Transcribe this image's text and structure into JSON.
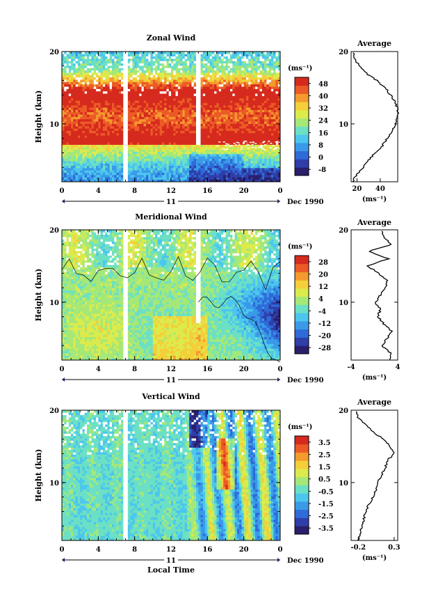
{
  "chart_data": [
    {
      "type": "heatmap",
      "title": "Zonal Wind",
      "xlabel": "",
      "ylabel": "Height (km)",
      "xlim": [
        0,
        24
      ],
      "ylim": [
        2,
        20
      ],
      "xticks": [
        "0",
        "4",
        "8",
        "12",
        "16",
        "20",
        "0"
      ],
      "yticks": [
        "20",
        "10"
      ],
      "date_bar": {
        "day": "11",
        "label": "Dec 1990"
      },
      "colorbar": {
        "unit": "(ms⁻¹)",
        "levels": [
          48,
          40,
          32,
          24,
          16,
          8,
          0,
          -8
        ],
        "range": [
          -8,
          52
        ]
      },
      "profile": {
        "title": "Average",
        "yticks": [
          "20",
          "10"
        ],
        "xticks": [
          "20",
          "40"
        ],
        "xlabel": "(ms⁻¹)",
        "xlim": [
          15,
          55
        ],
        "heights": [
          2,
          3,
          4,
          5,
          6,
          7,
          8,
          9,
          10,
          11,
          12,
          13,
          14,
          15,
          16,
          17,
          18,
          19,
          20
        ],
        "values": [
          16,
          20,
          25,
          30,
          36,
          42,
          46,
          50,
          53,
          55,
          55,
          53,
          49,
          44,
          37,
          28,
          22,
          18,
          17
        ]
      }
    },
    {
      "type": "heatmap",
      "title": "Meridional Wind",
      "xlabel": "",
      "ylabel": "Height (km)",
      "xlim": [
        0,
        24
      ],
      "ylim": [
        2,
        20
      ],
      "xticks": [
        "0",
        "4",
        "8",
        "12",
        "16",
        "20",
        "0"
      ],
      "yticks": [
        "20",
        "10"
      ],
      "date_bar": {
        "day": "11",
        "label": "Dec 1990"
      },
      "colorbar": {
        "unit": "(ms⁻¹)",
        "levels": [
          28,
          20,
          12,
          4,
          -4,
          -12,
          -20,
          -28
        ],
        "range": [
          -32,
          32
        ]
      },
      "profile": {
        "title": "Average",
        "yticks": [
          "20",
          "10"
        ],
        "xticks": [
          "-4",
          "4"
        ],
        "xlabel": "(ms⁻¹)",
        "xlim": [
          -4,
          4
        ],
        "heights": [
          2,
          3,
          4,
          5,
          6,
          7,
          8,
          9,
          10,
          11,
          12,
          13,
          14,
          15,
          16,
          17,
          18,
          19,
          20
        ],
        "values": [
          2.5,
          2.8,
          1.2,
          2.2,
          3.0,
          1.6,
          0.6,
          1.0,
          0.2,
          1.0,
          1.8,
          2.2,
          0.8,
          -1.2,
          2.4,
          -1.0,
          3.0,
          1.5,
          1.2
        ]
      }
    },
    {
      "type": "heatmap",
      "title": "Vertical Wind",
      "xlabel": "Local Time",
      "ylabel": "Height (km)",
      "xlim": [
        0,
        24
      ],
      "ylim": [
        2,
        20
      ],
      "xticks": [
        "0",
        "4",
        "8",
        "12",
        "16",
        "20",
        "0"
      ],
      "yticks": [
        "20",
        "10"
      ],
      "date_bar": {
        "day": "11",
        "label": "Dec 1990"
      },
      "colorbar": {
        "unit": "(ms⁻¹)",
        "levels": [
          3.5,
          2.5,
          1.5,
          0.5,
          -0.5,
          -1.5,
          -2.5,
          -3.5
        ],
        "range": [
          -4,
          4
        ]
      },
      "profile": {
        "title": "Average",
        "yticks": [
          "20",
          "10"
        ],
        "xticks": [
          "-0.2",
          "0.3"
        ],
        "xlabel": "(ms⁻¹)",
        "xlim": [
          -0.3,
          0.35
        ],
        "heights": [
          2,
          3,
          4,
          5,
          6,
          7,
          8,
          9,
          10,
          11,
          12,
          13,
          14,
          15,
          16,
          17,
          18,
          19,
          20
        ],
        "values": [
          -0.2,
          -0.18,
          -0.15,
          -0.12,
          -0.1,
          -0.05,
          0.0,
          0.05,
          0.08,
          0.12,
          0.18,
          0.2,
          0.3,
          0.25,
          0.15,
          0.0,
          -0.1,
          -0.2,
          -0.25
        ]
      }
    }
  ]
}
